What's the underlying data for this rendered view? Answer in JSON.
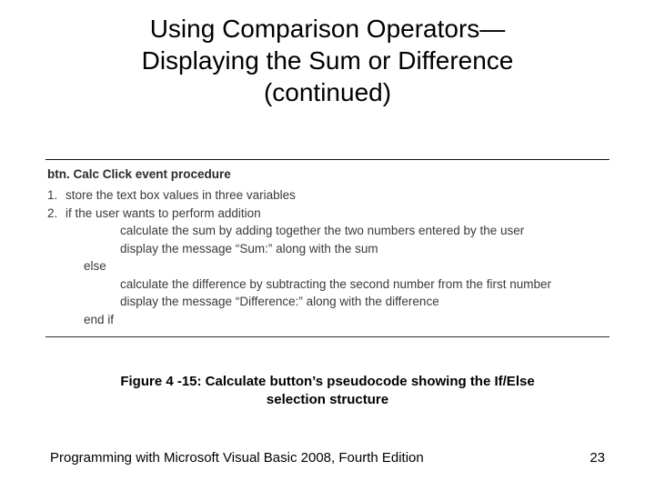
{
  "title": {
    "line1": "Using Comparison Operators—",
    "line2": "Displaying the Sum or Difference",
    "line3": "(continued)"
  },
  "pseudocode": {
    "procedure_label": "btn. Calc Click event procedure",
    "rule_color": "#303030",
    "text_color": "#3a3a3a",
    "font_size_pt": 10,
    "lines": {
      "l1_num": "1.",
      "l1": "store the text box values in three variables",
      "l2_num": "2.",
      "l2": "if the user wants to perform addition",
      "l3": "calculate the sum by adding together the two numbers entered by the user",
      "l4": "display the message “Sum:” along with the sum",
      "l5": "else",
      "l6": "calculate the difference by subtracting the second number from the first number",
      "l7": "display the message “Difference:” along with the difference",
      "l8": "end if"
    }
  },
  "caption": {
    "line1": "Figure 4 -15: Calculate button’s pseudocode showing the If/Else",
    "line2": "selection structure"
  },
  "footer": {
    "book": "Programming with Microsoft Visual Basic 2008, Fourth Edition",
    "page": "23"
  },
  "style": {
    "background": "#ffffff",
    "title_fontsize": 28,
    "caption_fontsize": 15,
    "footer_fontsize": 15,
    "body_fontsize": 13.5
  }
}
